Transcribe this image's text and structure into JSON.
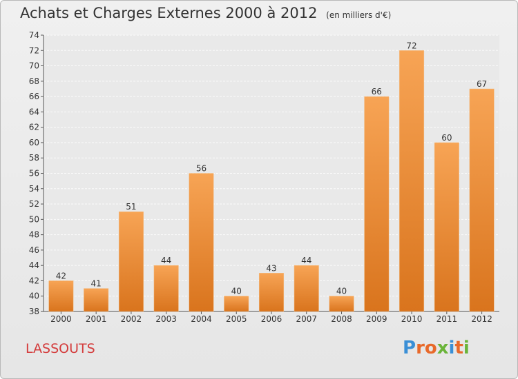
{
  "header": {
    "title": "Achats et Charges Externes 2000 à 2012",
    "subtitle": "(en milliers d'€)"
  },
  "footer": {
    "commune": "LASSOUTS",
    "logo": "Proxiti"
  },
  "colors": {
    "bar_top": "#f7a455",
    "bar_bottom": "#d9741d",
    "commune_text": "#d43c3c",
    "logo_letters": [
      "#3a8fd6",
      "#e8692a",
      "#e8692a",
      "#6ab43a",
      "#3a8fd6",
      "#e8692a",
      "#6ab43a"
    ]
  },
  "chart_data": {
    "type": "bar",
    "categories": [
      "2000",
      "2001",
      "2002",
      "2003",
      "2004",
      "2005",
      "2006",
      "2007",
      "2008",
      "2009",
      "2010",
      "2011",
      "2012"
    ],
    "values": [
      42,
      41,
      51,
      44,
      56,
      40,
      43,
      44,
      40,
      66,
      72,
      60,
      67
    ],
    "ylim": [
      38,
      74
    ],
    "yticks": [
      38,
      40,
      42,
      44,
      46,
      48,
      50,
      52,
      54,
      56,
      58,
      60,
      62,
      64,
      66,
      68,
      70,
      72,
      74
    ],
    "grid": true,
    "legend": "none"
  }
}
